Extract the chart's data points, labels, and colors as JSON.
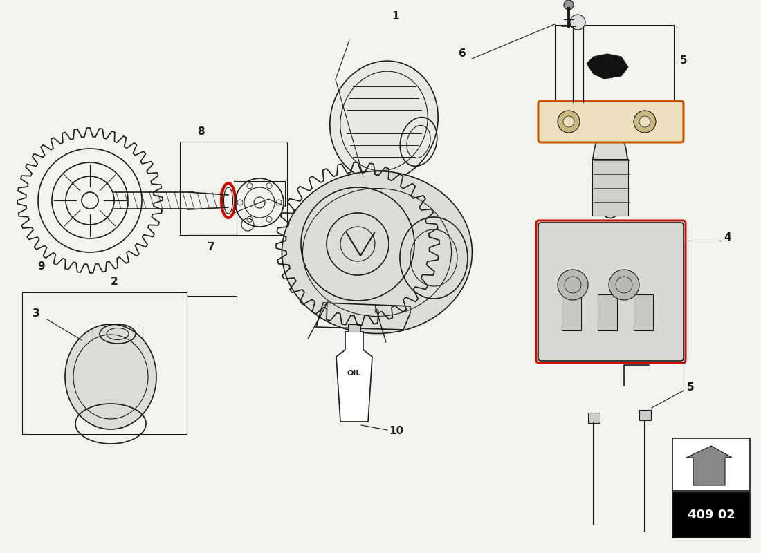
{
  "bg_color": "#f2f2ee",
  "line_color": "#1a1a1a",
  "red_color": "#cc1100",
  "orange_color": "#cc5500",
  "parts_box_color": "#000000",
  "parts_text_color": "#ffffff",
  "part_number": "409 02"
}
